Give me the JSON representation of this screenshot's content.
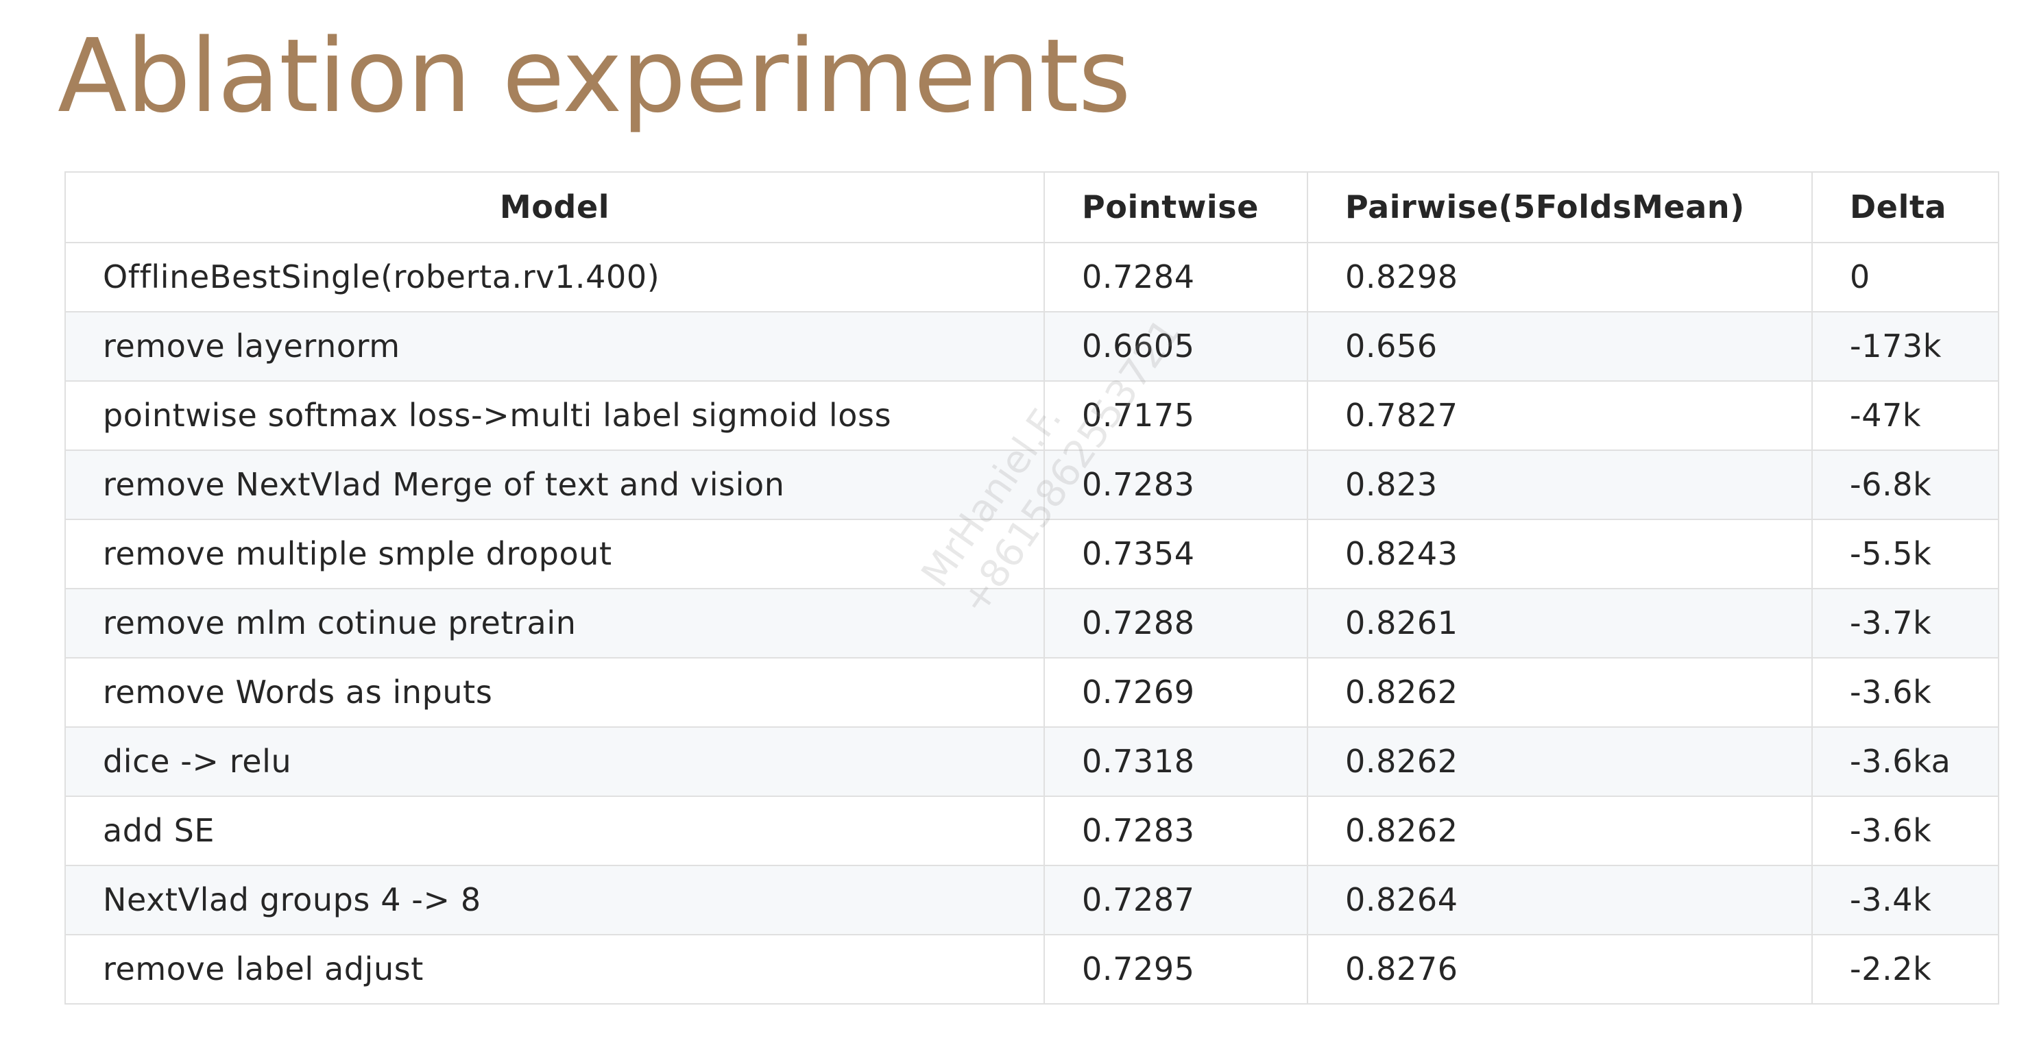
{
  "title": "Ablation experiments",
  "table": {
    "headers": {
      "model": "Model",
      "pointwise": "Pointwise",
      "pairwise": "Pairwise(5FoldsMean)",
      "delta": "Delta"
    },
    "rows": [
      {
        "model": "OfflineBestSingle(roberta.rv1.400)",
        "pointwise": "0.7284",
        "pairwise": "0.8298",
        "delta": "0"
      },
      {
        "model": "remove layernorm",
        "pointwise": "0.6605",
        "pairwise": "0.656",
        "delta": "-173k"
      },
      {
        "model": "pointwise softmax loss->multi label sigmoid loss",
        "pointwise": "0.7175",
        "pairwise": "0.7827",
        "delta": "-47k"
      },
      {
        "model": "remove NextVlad Merge of text and vision",
        "pointwise": "0.7283",
        "pairwise": "0.823",
        "delta": "-6.8k"
      },
      {
        "model": "remove multiple smple dropout",
        "pointwise": "0.7354",
        "pairwise": "0.8243",
        "delta": "-5.5k"
      },
      {
        "model": "remove mlm cotinue pretrain",
        "pointwise": "0.7288",
        "pairwise": "0.8261",
        "delta": "-3.7k"
      },
      {
        "model": "remove Words as inputs",
        "pointwise": "0.7269",
        "pairwise": "0.8262",
        "delta": "-3.6k"
      },
      {
        "model": "dice -> relu",
        "pointwise": "0.7318",
        "pairwise": "0.8262",
        "delta": "-3.6ka"
      },
      {
        "model": "add SE",
        "pointwise": "0.7283",
        "pairwise": "0.8262",
        "delta": "-3.6k"
      },
      {
        "model": "NextVlad groups 4 -> 8",
        "pointwise": "0.7287",
        "pairwise": "0.8264",
        "delta": "-3.4k"
      },
      {
        "model": "remove label adjust",
        "pointwise": "0.7295",
        "pairwise": "0.8276",
        "delta": "-2.2k"
      }
    ]
  },
  "watermark": {
    "line1": "MrHaniel.F.",
    "line2": "+8615862553721"
  }
}
